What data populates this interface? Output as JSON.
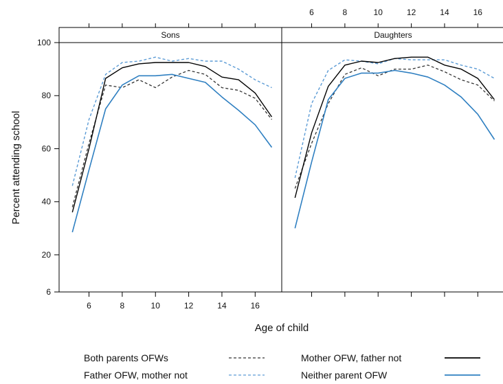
{
  "chart_data": {
    "type": "line",
    "xlabel": "Age of child",
    "ylabel": "Percent attending school",
    "xlim": [
      4.2,
      17.6
    ],
    "ylim": [
      6,
      100
    ],
    "x_ticks": [
      6,
      8,
      10,
      12,
      14,
      16
    ],
    "y_ticks": [
      6,
      20,
      40,
      60,
      80,
      100
    ],
    "x": [
      5,
      6,
      7,
      8,
      9,
      10,
      11,
      12,
      13,
      14,
      15,
      16,
      17
    ],
    "grid": false,
    "legend_position": "bottom",
    "panels": [
      {
        "title": "Sons",
        "series": [
          {
            "name": "Both parents OFWs",
            "values": [
              38,
              62,
              84,
              83,
              86,
              83,
              87,
              89.5,
              88,
              83,
              82,
              79,
              71
            ]
          },
          {
            "name": "Father OFW, mother not",
            "values": [
              46,
              71,
              88,
              92.5,
              93,
              94.5,
              93,
              94,
              93,
              93,
              90,
              86,
              83
            ]
          },
          {
            "name": "Mother OFW, father not",
            "values": [
              36,
              60,
              86.5,
              90.5,
              92,
              92.5,
              92.5,
              92.5,
              91,
              87,
              86,
              81,
              72
            ]
          },
          {
            "name": "Neither parent OFW",
            "values": [
              28.5,
              52,
              75,
              84,
              87.5,
              87.5,
              88,
              86.5,
              85,
              79.5,
              74.5,
              69,
              60.5
            ]
          }
        ]
      },
      {
        "title": "Daughters",
        "series": [
          {
            "name": "Both parents OFWs",
            "values": [
              45,
              62,
              77,
              88,
              90.5,
              87.5,
              90,
              90,
              91.5,
              89,
              86,
              84,
              78
            ]
          },
          {
            "name": "Father OFW, mother not",
            "values": [
              49,
              77,
              89.5,
              93.5,
              93,
              92,
              94,
              93.5,
              93.5,
              93.5,
              91.5,
              90,
              86.5
            ]
          },
          {
            "name": "Mother OFW, father not",
            "values": [
              41.5,
              66,
              83.5,
              91.5,
              93,
              92.5,
              94,
              94.5,
              94.5,
              91.5,
              90,
              86.5,
              78.5
            ]
          },
          {
            "name": "Neither parent OFW",
            "values": [
              30,
              55,
              78.5,
              86.5,
              88.5,
              88.5,
              89.5,
              88.5,
              87,
              84,
              79.5,
              73,
              63.5
            ]
          }
        ]
      }
    ],
    "legend": [
      {
        "name": "Both parents OFWs",
        "color": "#333333",
        "dash": true
      },
      {
        "name": "Father OFW, mother not",
        "color": "#5b9bd5",
        "dash": true
      },
      {
        "name": "Mother OFW, father not",
        "color": "#000000",
        "dash": false
      },
      {
        "name": "Neither parent OFW",
        "color": "#2e7fc1",
        "dash": false
      }
    ]
  }
}
